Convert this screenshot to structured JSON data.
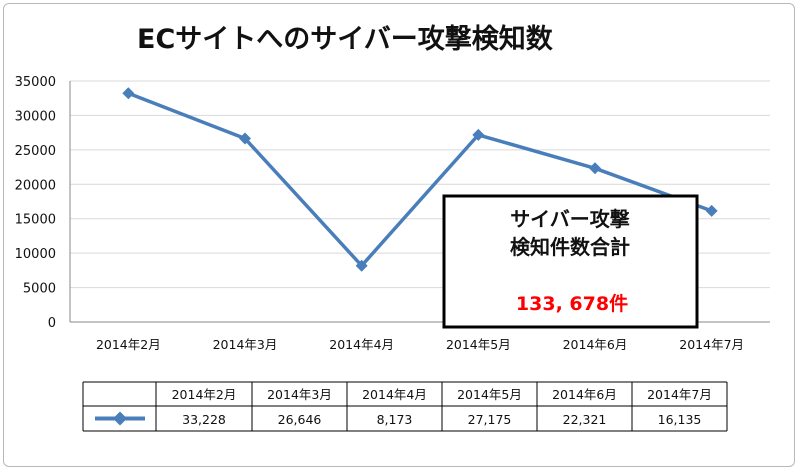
{
  "chart_data": {
    "type": "line",
    "title": "ECサイトへのサイバー攻撃検知数",
    "categories": [
      "2014年2月",
      "2014年3月",
      "2014年4月",
      "2014年5月",
      "2014年6月",
      "2014年7月"
    ],
    "series": [
      {
        "values": [
          33228,
          26646,
          8173,
          27175,
          22321,
          16135
        ],
        "color": "#4a7ebb",
        "marker": "diamond"
      }
    ],
    "y_ticks": [
      "35000",
      "30000",
      "25000",
      "20000",
      "15000",
      "10000",
      "5000",
      "0"
    ],
    "ylim": [
      0,
      35000
    ],
    "grid": true,
    "legend": "none",
    "data_table": {
      "headers": [
        "2014年2月",
        "2014年3月",
        "2014年4月",
        "2014年5月",
        "2014年6月",
        "2014年7月"
      ],
      "values": [
        "33,228",
        "26,646",
        "8,173",
        "27,175",
        "22,321",
        "16,135"
      ]
    },
    "annotation": {
      "line1": "サイバー攻撃",
      "line2": "検知件数合計",
      "total": "133, 678件"
    }
  }
}
